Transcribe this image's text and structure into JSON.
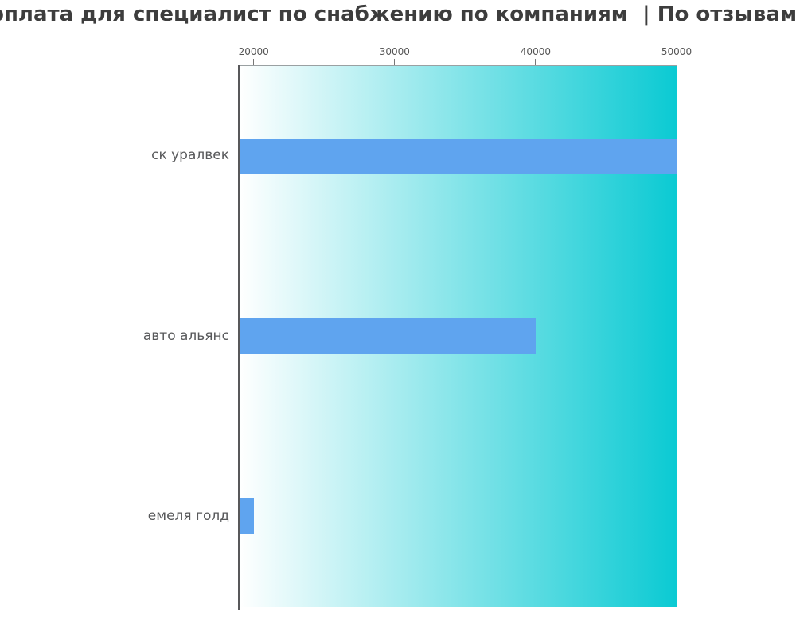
{
  "title": {
    "text": "зарплата для специалист по снабжению по компаниям  | По отзывам na"
  },
  "colors": {
    "title_text": "#3d3d3d",
    "bar": "#5fa4ef",
    "plot_gradient_start": "#ffffff",
    "plot_gradient_end": "#0bcad3",
    "plot_top_border": "#9aa0a2",
    "axis_line": "#58585a",
    "tick_mark": "#777777",
    "tick_text": "#555555",
    "category_text": "#58595b",
    "page_background": "#ffffff"
  },
  "chart_data": {
    "type": "bar",
    "orientation": "horizontal",
    "title": "зарплата для специалист по снабжению по компаниям  | По отзывам na",
    "categories": [
      "ск уралвек",
      "авто альянс",
      "емеля голд"
    ],
    "values": [
      50000,
      40000,
      20000
    ],
    "xlabel": "",
    "ylabel": "",
    "xlim": [
      19000,
      50000
    ],
    "xticks": [
      20000,
      30000,
      40000,
      50000
    ],
    "xtick_labels": [
      "20000",
      "30000",
      "40000",
      "50000"
    ],
    "xtick_position": "top",
    "grid": false,
    "legend": false,
    "plot_background": "horizontal gradient white to turquoise"
  }
}
